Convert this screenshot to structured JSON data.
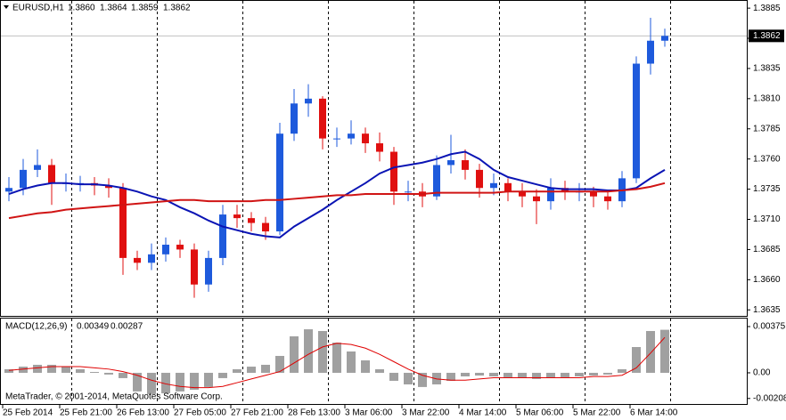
{
  "chart_data": [
    {
      "type": "candlestick",
      "title": "EURUSD,H1",
      "header_values": [
        {
          "value": 1.386,
          "label": "1.3860"
        },
        1.3864,
        1.3859,
        1.3862
      ],
      "last_price": 1.3862,
      "categories": [
        "25 Feb 2014",
        null,
        null,
        null,
        "25 Feb 21:00",
        null,
        null,
        null,
        "26 Feb 13:00",
        null,
        null,
        null,
        "27 Feb 05:00",
        null,
        null,
        null,
        "27 Feb 21:00",
        null,
        null,
        null,
        "28 Feb 13:00",
        null,
        null,
        null,
        "3 Mar 06:00",
        null,
        null,
        null,
        "3 Mar 22:00",
        null,
        null,
        null,
        "4 Mar 14:00",
        null,
        null,
        null,
        "5 Mar 06:00",
        null,
        null,
        null,
        "5 Mar 22:00",
        null,
        null,
        null,
        "6 Mar 14:00",
        null,
        null
      ],
      "open": [
        1.3733,
        1.3736,
        1.3751,
        1.3755,
        1.374,
        1.374,
        1.374,
        1.3738,
        1.3736,
        1.3678,
        1.3674,
        1.3681,
        1.3689,
        1.3685,
        1.3656,
        1.3678,
        1.3714,
        1.3711,
        1.3707,
        1.37,
        1.3781,
        1.3806,
        1.381,
        1.3777,
        1.3777,
        1.3781,
        1.3773,
        1.3766,
        1.3733,
        1.3733,
        1.3729,
        1.3755,
        1.3759,
        1.3751,
        1.3736,
        1.374,
        1.3733,
        1.3729,
        1.3725,
        1.3736,
        1.3733,
        1.3733,
        1.3729,
        1.3725,
        1.3744,
        1.3839,
        1.3858
      ],
      "high": [
        1.3745,
        1.376,
        1.3768,
        1.376,
        1.3748,
        1.3746,
        1.3745,
        1.3744,
        1.374,
        1.3684,
        1.369,
        1.3695,
        1.3693,
        1.369,
        1.3684,
        1.3722,
        1.3722,
        1.3716,
        1.3712,
        1.379,
        1.3818,
        1.3822,
        1.3812,
        1.3786,
        1.3792,
        1.3786,
        1.3782,
        1.377,
        1.3742,
        1.374,
        1.3763,
        1.378,
        1.3768,
        1.3756,
        1.3748,
        1.3744,
        1.374,
        1.3735,
        1.3744,
        1.3742,
        1.374,
        1.3737,
        1.3733,
        1.375,
        1.3845,
        1.3877,
        1.3868
      ],
      "low": [
        1.3725,
        1.373,
        1.3745,
        1.3722,
        1.3733,
        1.3733,
        1.373,
        1.3728,
        1.3664,
        1.3668,
        1.3668,
        1.3675,
        1.3678,
        1.3645,
        1.365,
        1.3672,
        1.3703,
        1.37,
        1.3693,
        1.3697,
        1.3775,
        1.3795,
        1.3768,
        1.377,
        1.3772,
        1.3765,
        1.3758,
        1.3722,
        1.3725,
        1.372,
        1.3726,
        1.3748,
        1.3743,
        1.3728,
        1.373,
        1.3725,
        1.372,
        1.3706,
        1.3718,
        1.3726,
        1.3725,
        1.372,
        1.3718,
        1.372,
        1.374,
        1.383,
        1.3853
      ],
      "close": [
        1.3736,
        1.3751,
        1.3755,
        1.374,
        1.374,
        1.374,
        1.3738,
        1.3736,
        1.3678,
        1.3674,
        1.3681,
        1.3689,
        1.3685,
        1.3656,
        1.3678,
        1.3714,
        1.3711,
        1.3707,
        1.37,
        1.3781,
        1.3806,
        1.381,
        1.3777,
        1.3777,
        1.3781,
        1.3773,
        1.3766,
        1.3733,
        1.3733,
        1.3729,
        1.3755,
        1.3759,
        1.3751,
        1.3736,
        1.374,
        1.3733,
        1.3729,
        1.3725,
        1.3736,
        1.3733,
        1.3733,
        1.3729,
        1.3725,
        1.3744,
        1.3839,
        1.3858,
        1.3862
      ],
      "up_color": "#1e5adc",
      "down_color": "#e01010",
      "series": [
        {
          "type": "line",
          "color": "#0a14b4",
          "values": [
            1.3731,
            1.3735,
            1.3738,
            1.374,
            1.374,
            1.3739,
            1.3739,
            1.3738,
            1.3736,
            1.3733,
            1.3729,
            1.3726,
            1.372,
            1.3715,
            1.3709,
            1.3704,
            1.3701,
            1.3698,
            1.3696,
            1.3695,
            1.3704,
            1.3711,
            1.3718,
            1.3726,
            1.3733,
            1.374,
            1.3748,
            1.3753,
            1.3755,
            1.3757,
            1.376,
            1.3764,
            1.3766,
            1.376,
            1.3751,
            1.3745,
            1.3742,
            1.3739,
            1.3736,
            1.3735,
            1.3735,
            1.3735,
            1.3734,
            1.3734,
            1.3736,
            1.3744,
            1.3751
          ]
        },
        {
          "type": "line",
          "color": "#d01414",
          "values": [
            1.3711,
            1.3713,
            1.3715,
            1.3716,
            1.3718,
            1.3719,
            1.372,
            1.3721,
            1.3722,
            1.3723,
            1.3724,
            1.3725,
            1.3726,
            1.3726,
            1.3725,
            1.3725,
            1.3725,
            1.3725,
            1.3726,
            1.3726,
            1.3727,
            1.3728,
            1.3729,
            1.373,
            1.373,
            1.3731,
            1.3731,
            1.3731,
            1.3731,
            1.3731,
            1.3732,
            1.3732,
            1.3732,
            1.3732,
            1.3732,
            1.3733,
            1.3733,
            1.3733,
            1.3733,
            1.3733,
            1.3733,
            1.3733,
            1.3733,
            1.3734,
            1.3735,
            1.3737,
            1.374
          ]
        }
      ],
      "ylim": [
        1.363,
        1.3891
      ],
      "yticks": [
        {
          "value": 1.3885,
          "label": "1.3885"
        },
        {
          "value": 1.386,
          "label": "1.3860"
        },
        {
          "value": 1.3835,
          "label": "1.3835"
        },
        {
          "value": 1.381,
          "label": "1.3810"
        },
        {
          "value": 1.3785,
          "label": "1.3785"
        },
        {
          "value": 1.376,
          "label": "1.3760"
        },
        {
          "value": 1.3735,
          "label": "1.3735"
        },
        {
          "value": 1.371,
          "label": "1.3710"
        },
        {
          "value": 1.3685,
          "label": "1.3685"
        },
        {
          "value": 1.366,
          "label": "1.3660"
        },
        {
          "value": 1.3635,
          "label": "1.3635"
        }
      ]
    },
    {
      "type": "macd",
      "title": "MACD(12,26,9)",
      "header_values": [
        0.00349,
        0.00287
      ],
      "annotation": "MetaTrader, © 2001-2014, MetaQuotes Software Corp.",
      "series": [
        {
          "type": "bar",
          "color": "#a0a0a0",
          "values": [
            0.00029,
            0.0005,
            0.00065,
            0.00065,
            0.0005,
            0.00029,
            7e-05,
            -0.00014,
            -0.00043,
            -0.00151,
            -0.00173,
            -0.00166,
            -0.00151,
            -0.00137,
            -0.00115,
            -0.00043,
            0.00029,
            0.0005,
            0.00065,
            0.00137,
            0.00296,
            0.00353,
            0.00339,
            0.00245,
            0.00173,
            0.00101,
            0.00029,
            -0.00065,
            -0.00094,
            -0.00115,
            -0.00094,
            -0.00065,
            -0.00029,
            -0.00022,
            -0.00029,
            -0.00036,
            -0.00043,
            -0.0005,
            -0.00043,
            -0.00036,
            -0.00029,
            -0.00022,
            -0.00014,
            0.00029,
            0.00209,
            0.00339,
            0.00349
          ]
        },
        {
          "type": "line",
          "color": "#e00000",
          "values": [
            0.0002,
            0.0003,
            0.0004,
            0.0005,
            0.0005,
            0.0005,
            0.0004,
            0.0003,
            0.0001,
            -0.0002,
            -0.0006,
            -0.0009,
            -0.0011,
            -0.0012,
            -0.0012,
            -0.0011,
            -0.0008,
            -0.0005,
            -0.0002,
            0.0001,
            0.0008,
            0.0015,
            0.0021,
            0.0024,
            0.0023,
            0.002,
            0.0015,
            0.0009,
            0.0003,
            -0.0002,
            -0.0005,
            -0.0006,
            -0.0006,
            -0.0005,
            -0.0004,
            -0.0004,
            -0.0004,
            -0.0004,
            -0.0004,
            -0.0004,
            -0.0004,
            -0.0003,
            -0.0003,
            -0.0002,
            0.0004,
            0.0016,
            0.00287
          ]
        }
      ],
      "ylim": [
        -0.0026,
        0.0044
      ],
      "yticks": [
        0.00375,
        {
          "value": 0,
          "label": "0.00"
        },
        -0.00208
      ]
    }
  ]
}
